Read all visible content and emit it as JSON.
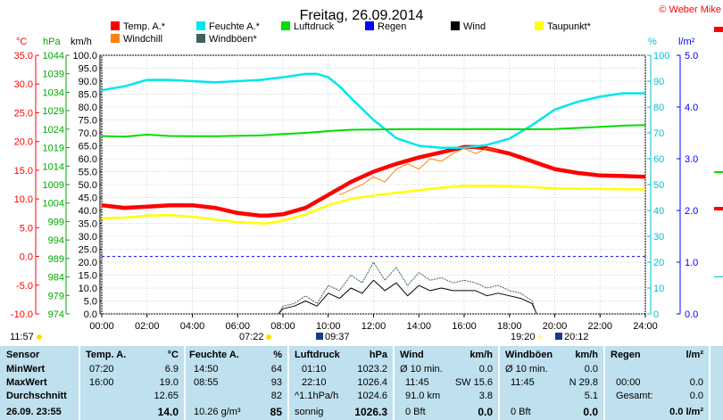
{
  "title": "Freitag, 26.09.2014",
  "credit": "© Weber Mike",
  "legend": [
    {
      "label": "Temp. A.*",
      "color": "#ff0000"
    },
    {
      "label": "Feuchte A.*",
      "color": "#00e5ee"
    },
    {
      "label": "Luftdruck",
      "color": "#00dd00"
    },
    {
      "label": "Regen",
      "color": "#0000ff"
    },
    {
      "label": "Wind",
      "color": "#000000"
    },
    {
      "label": "Taupunkt*",
      "color": "#ffff00"
    },
    {
      "label": "Windchill",
      "color": "#ff8000"
    },
    {
      "label": "Windböen*",
      "color": "#406060"
    }
  ],
  "axis_units": {
    "temp": "°C",
    "press": "hPa",
    "wind": "km/h",
    "hum": "%",
    "rain": "l/m²"
  },
  "chart_data": {
    "type": "line",
    "x_ticks": [
      "00:00",
      "02:00",
      "04:00",
      "06:00",
      "08:00",
      "10:00",
      "12:00",
      "14:00",
      "16:00",
      "18:00",
      "20:00",
      "22:00",
      "24:00"
    ],
    "temp_ticks": [
      "35.0",
      "30.0",
      "25.0",
      "20.0",
      "15.0",
      "10.0",
      "5.0",
      "0.0",
      "-5.0",
      "-10.0"
    ],
    "press_ticks": [
      "1044",
      "1039",
      "1034",
      "1029",
      "1024",
      "1019",
      "1014",
      "1009",
      "1004",
      "999",
      "994",
      "989",
      "984",
      "979",
      "974"
    ],
    "wind_ticks": [
      "100.0",
      "95.0",
      "90.0",
      "85.0",
      "80.0",
      "75.0",
      "70.0",
      "65.0",
      "60.0",
      "55.0",
      "50.0",
      "45.0",
      "40.0",
      "35.0",
      "30.0",
      "25.0",
      "20.0",
      "15.0",
      "10.0",
      "5.0",
      "0.0"
    ],
    "hum_ticks": [
      "100",
      "90",
      "80",
      "70",
      "60",
      "50",
      "40",
      "30",
      "20",
      "10",
      "0"
    ],
    "rain_ticks": [
      "5.0",
      "4.0",
      "3.0",
      "2.0",
      "1.0",
      "0.0"
    ],
    "wind_range": [
      0,
      100
    ],
    "series": [
      {
        "name": "Temp. A.*",
        "color": "#ff0000",
        "x": [
          0,
          1,
          2,
          3,
          4,
          5,
          6,
          7,
          7.33,
          8,
          9,
          10,
          11,
          12,
          13,
          14,
          15,
          16,
          16.5,
          17,
          18,
          19,
          20,
          21,
          22,
          23,
          24
        ],
        "y": [
          42,
          41,
          41.5,
          42,
          42,
          41,
          39,
          38,
          38,
          38.5,
          41,
          46,
          51,
          55,
          58,
          60.5,
          62.5,
          64.5,
          64.5,
          64,
          62,
          59,
          56,
          54.5,
          53.5,
          53.3,
          53
        ]
      },
      {
        "name": "Feuchte A.*",
        "color": "#00e5ee",
        "x": [
          0,
          1,
          2,
          3,
          4,
          5,
          6,
          7,
          8,
          9,
          9.5,
          10,
          10.5,
          11,
          12,
          13,
          14,
          15,
          16,
          17,
          18,
          19,
          20,
          21,
          22,
          23,
          24
        ],
        "y": [
          86.5,
          88,
          90.5,
          90.5,
          90,
          89.5,
          90,
          90.5,
          91.5,
          92.8,
          92.8,
          91.5,
          88,
          83.5,
          75,
          68,
          65,
          64.2,
          64.2,
          65.3,
          67.8,
          73,
          79,
          82,
          84,
          85.3,
          85.3
        ]
      },
      {
        "name": "Luftdruck",
        "color": "#00dd00",
        "x": [
          0,
          1,
          2,
          3,
          4,
          5,
          6,
          7,
          8,
          9,
          10,
          11,
          12,
          13,
          14,
          15,
          16,
          17,
          18,
          19,
          20,
          21,
          22,
          23,
          24
        ],
        "y": [
          68.8,
          68.5,
          69.3,
          68.8,
          68.7,
          68.7,
          68.9,
          69,
          69.5,
          70,
          70.7,
          71.2,
          71.3,
          71.4,
          71.5,
          71.5,
          71.4,
          71.5,
          71.4,
          71.4,
          71.5,
          71.9,
          72.3,
          72.8,
          73
        ]
      },
      {
        "name": "Taupunkt*",
        "color": "#ffff00",
        "x": [
          0,
          1,
          2,
          3,
          4,
          5,
          6,
          7,
          7.33,
          8,
          9,
          10,
          11,
          12,
          13,
          14,
          15,
          16,
          17,
          18,
          19,
          20,
          21,
          22,
          23,
          24
        ],
        "y": [
          37,
          37.2,
          38,
          38.2,
          37.6,
          36.5,
          35.5,
          35,
          35,
          36,
          38.5,
          42,
          44.5,
          45.8,
          46.8,
          47.8,
          48.8,
          49.5,
          49.5,
          49.3,
          49,
          48.6,
          48.4,
          48.3,
          48.2,
          48.2
        ]
      },
      {
        "name": "Windchill",
        "color": "#ff8000",
        "x": [
          10.5,
          11,
          11.5,
          12,
          12.5,
          13,
          13.5,
          14,
          14.5,
          15,
          15.5,
          16,
          16.5,
          17,
          17.5
        ],
        "y": [
          46,
          48,
          50,
          53,
          51,
          56,
          58,
          56,
          60,
          59,
          62,
          64,
          62,
          64,
          63
        ]
      },
      {
        "name": "Wind",
        "color": "#000000",
        "x": [
          7.8,
          8,
          8.5,
          9,
          9.5,
          10,
          10.5,
          11,
          11.5,
          12,
          12.5,
          13,
          13.5,
          14,
          14.5,
          15,
          15.5,
          16,
          16.5,
          17,
          17.5,
          18,
          18.5,
          19,
          19.2
        ],
        "y": [
          0,
          2,
          3,
          5,
          3,
          8,
          6,
          10,
          8,
          13,
          9,
          12,
          7,
          11,
          9,
          10,
          9,
          9,
          9,
          7,
          8,
          7,
          6,
          4,
          0
        ]
      },
      {
        "name": "Windböen*",
        "color": "#406060",
        "x": [
          7.8,
          8,
          8.5,
          9,
          9.5,
          10,
          10.5,
          11,
          11.5,
          12,
          12.5,
          13,
          13.5,
          14,
          14.5,
          15,
          15.5,
          16,
          16.5,
          17,
          17.5,
          18,
          18.5,
          19,
          19.2
        ],
        "y": [
          0,
          3,
          4,
          7,
          4,
          11,
          9,
          15,
          12,
          20,
          13,
          18,
          11,
          16,
          13,
          14,
          12,
          13,
          12,
          10,
          11,
          9,
          8,
          5,
          0
        ]
      }
    ],
    "zero_line_wind": 22.2
  },
  "events": {
    "left_time": "11:57",
    "sunrise": "07:22",
    "moonset": "09:37",
    "sunset": "19:20",
    "moonrise": "20:12"
  },
  "stats": {
    "sensor": {
      "h": "Sensor",
      "r1": "MinWert",
      "r2": "MaxWert",
      "r3": "Durchschnitt",
      "r4": "26.09.  23:55"
    },
    "temp": {
      "h": "Temp. A.",
      "u": "°C",
      "min_t": "07:20",
      "min_v": "6.9",
      "max_t": "16:00",
      "max_v": "19.0",
      "avg": "12.65",
      "cur": "14.0"
    },
    "hum": {
      "h": "Feuchte A.",
      "u": "%",
      "min_t": "14:50",
      "min_v": "64",
      "max_t": "08:55",
      "max_v": "93",
      "avg": "82",
      "abs": "10.26 g/m³",
      "cur": "85"
    },
    "press": {
      "h": "Luftdruck",
      "u": "hPa",
      "min_t": "01:10",
      "min_v": "1023.2",
      "max_t": "22:10",
      "max_v": "1026.4",
      "trend": "^1.1hPa/h",
      "avg": "1024.6",
      "fc": "sonnig",
      "cur": "1026.3"
    },
    "wind": {
      "h": "Wind",
      "u": "km/h",
      "r1l": "Ø 10 min.",
      "r1v": "0.0",
      "r2t": "11:45",
      "r2d": "SW 15.6",
      "r3l": "91.0 km",
      "r3v": "3.8",
      "r4l": "0 Bft",
      "r4v": "0.0"
    },
    "gust": {
      "h": "Windböen",
      "u": "km/h",
      "r1l": "Ø 10 min.",
      "r1v": "0.0",
      "r2t": "11:45",
      "r2d": "N 29.8",
      "r3v": "5.1",
      "r4l": "0 Bft",
      "r4v": "0.0"
    },
    "rain": {
      "h": "Regen",
      "u": "l/m²",
      "r2t": "00:00",
      "r2v": "0.0",
      "r3l": "Gesamt:",
      "r3v": "0.0",
      "r4v": "0.0 l/m²"
    }
  }
}
